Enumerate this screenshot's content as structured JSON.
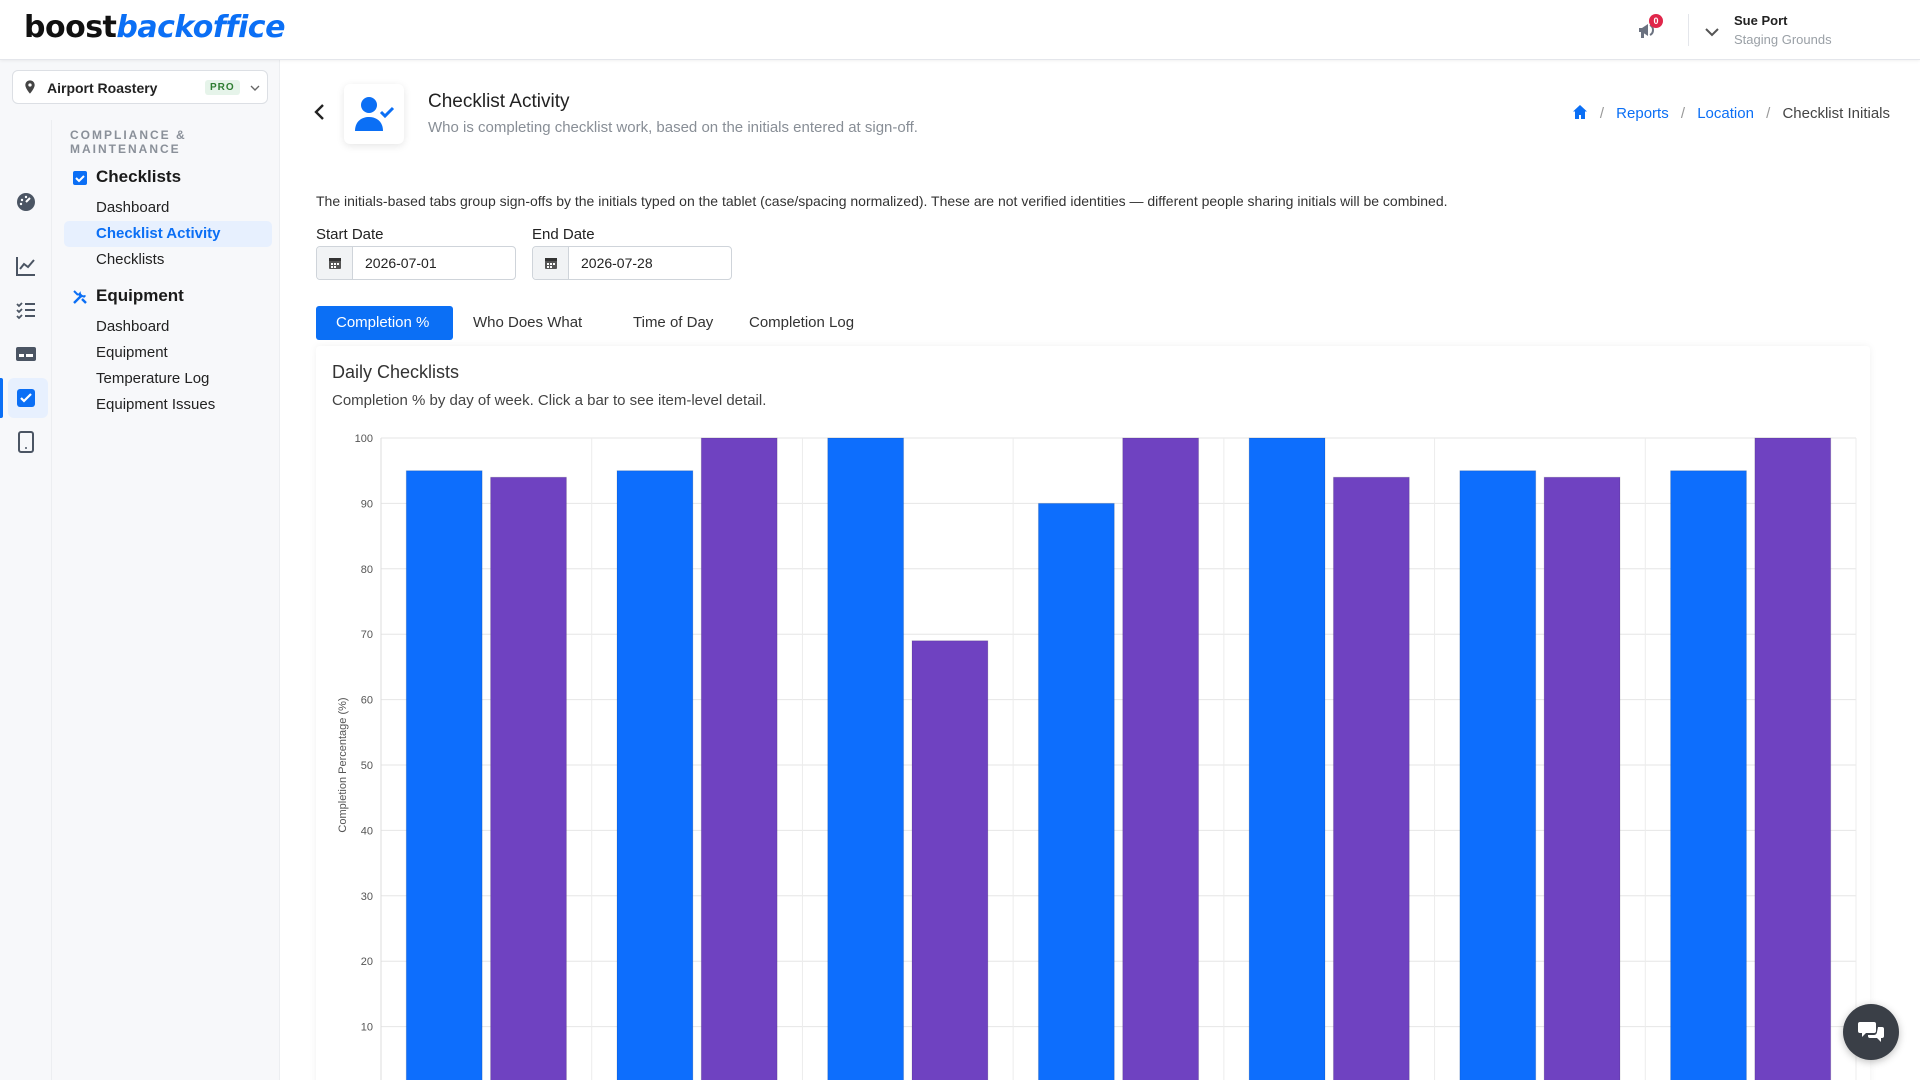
{
  "app": {
    "logo_part1": "boost",
    "logo_part2": "backoffice",
    "notifications_count": "0",
    "user_name": "Sue Port",
    "user_org": "Staging Grounds"
  },
  "sidebar": {
    "location_name": "Airport Roastery",
    "location_badge": "PRO",
    "section_title": "COMPLIANCE & MAINTENANCE",
    "groups": [
      {
        "label": "Checklists",
        "items": [
          {
            "label": "Dashboard"
          },
          {
            "label": "Checklist Activity"
          },
          {
            "label": "Checklists"
          }
        ]
      },
      {
        "label": "Equipment",
        "items": [
          {
            "label": "Dashboard"
          },
          {
            "label": "Equipment"
          },
          {
            "label": "Temperature Log"
          },
          {
            "label": "Equipment Issues"
          }
        ]
      }
    ]
  },
  "page": {
    "title": "Checklist Activity",
    "subtitle": "Who is completing checklist work, based on the initials entered at sign-off.",
    "breadcrumb": [
      "Reports",
      "Location",
      "Checklist Initials"
    ],
    "notice": "The initials-based tabs group sign-offs by the initials typed on the tablet (case/spacing normalized). These are not verified identities — different people sharing initials will be combined.",
    "start_date_label": "Start Date",
    "start_date_value": "2026-07-01",
    "end_date_label": "End Date",
    "end_date_value": "2026-07-28",
    "tabs": [
      "Completion %",
      "Who Does What",
      "Time of Day",
      "Completion Log"
    ]
  },
  "card": {
    "title": "Daily Checklists",
    "subtitle": "Completion % by day of week. Click a bar to see item-level detail."
  },
  "colors": {
    "accent": "#0b6ff5",
    "series1": "#0d6efd",
    "series2": "#6f42c1"
  },
  "chart_data": {
    "type": "bar",
    "ylabel": "Completion Percentage (%)",
    "ylim": [
      0,
      100
    ],
    "yticks": [
      10,
      20,
      30,
      40,
      50,
      60,
      70,
      80,
      90,
      100
    ],
    "grid": true,
    "categories_visible": false,
    "series": [
      {
        "values": [
          95,
          95,
          100,
          90,
          100,
          95,
          95
        ]
      },
      {
        "values": [
          94,
          100,
          69,
          100,
          94,
          94,
          100
        ]
      }
    ]
  }
}
